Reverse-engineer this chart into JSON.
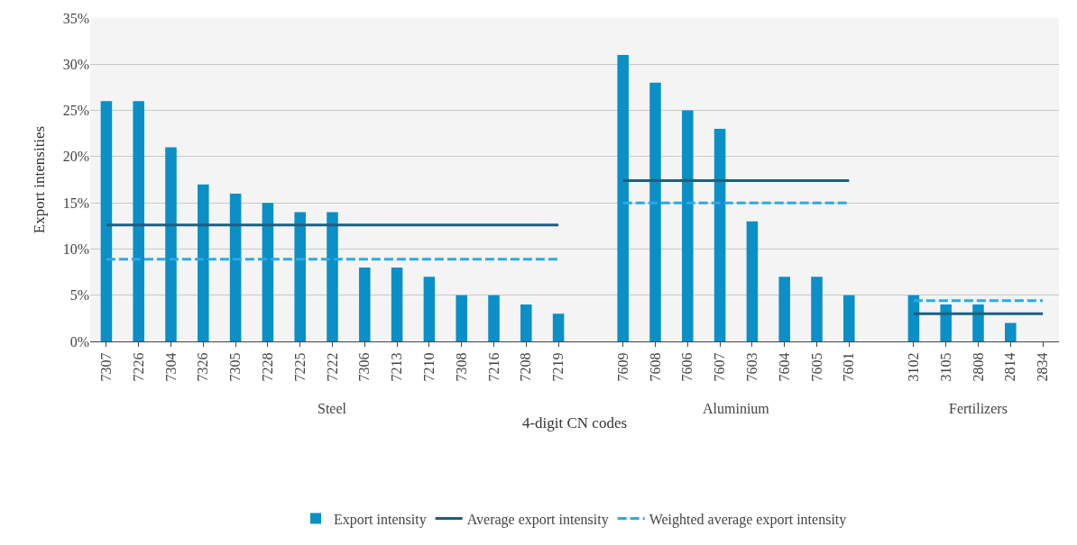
{
  "chart_data": {
    "type": "bar",
    "xlabel": "4-digit CN codes",
    "ylabel": "Export intensities",
    "categories": [
      "7307",
      "7226",
      "7304",
      "7326",
      "7305",
      "7228",
      "7225",
      "7222",
      "7306",
      "7213",
      "7210",
      "7308",
      "7216",
      "7208",
      "7219",
      null,
      "7609",
      "7608",
      "7606",
      "7607",
      "7603",
      "7604",
      "7605",
      "7601",
      null,
      "3102",
      "3105",
      "2808",
      "2814",
      "2834"
    ],
    "series": [
      {
        "name": "Export intensity",
        "color": "#0a8fc6",
        "values": [
          26,
          26,
          21,
          17,
          16,
          15,
          14,
          14,
          8,
          8,
          7,
          5,
          5,
          4,
          3,
          null,
          31,
          28,
          25,
          23,
          13,
          7,
          7,
          5,
          null,
          5,
          4,
          4,
          2,
          0
        ]
      },
      {
        "name": "Average export intensity",
        "type": "line",
        "line_style": "solid",
        "color": "#1c5f80",
        "values": [
          12.6,
          12.6,
          12.6,
          12.6,
          12.6,
          12.6,
          12.6,
          12.6,
          12.6,
          12.6,
          12.6,
          12.6,
          12.6,
          12.6,
          12.6,
          null,
          17.4,
          17.4,
          17.4,
          17.4,
          17.4,
          17.4,
          17.4,
          17.4,
          null,
          3,
          3,
          3,
          3,
          3
        ]
      },
      {
        "name": "Weighted average export intensity",
        "type": "line",
        "line_style": "dashed",
        "color": "#2aaae6",
        "values": [
          8.9,
          8.9,
          8.9,
          8.9,
          8.9,
          8.9,
          8.9,
          8.9,
          8.9,
          8.9,
          8.9,
          8.9,
          8.9,
          8.9,
          8.9,
          null,
          15,
          15,
          15,
          15,
          15,
          15,
          15,
          15,
          null,
          4.4,
          4.4,
          4.4,
          4.4,
          4.4
        ]
      }
    ],
    "ylim": [
      0,
      35
    ],
    "yticks": [
      {
        "value": 0,
        "label": "0%"
      },
      {
        "value": 5,
        "label": "5%"
      },
      {
        "value": 10,
        "label": "10%"
      },
      {
        "value": 15,
        "label": "15%"
      },
      {
        "value": 20,
        "label": "20%"
      },
      {
        "value": 25,
        "label": "25%"
      },
      {
        "value": 30,
        "label": "30%"
      },
      {
        "value": 35,
        "label": "35%"
      }
    ],
    "grid": "y",
    "legend": "bottom",
    "annotations": [
      "Steel",
      "Aluminium",
      "Fertilizers"
    ]
  }
}
